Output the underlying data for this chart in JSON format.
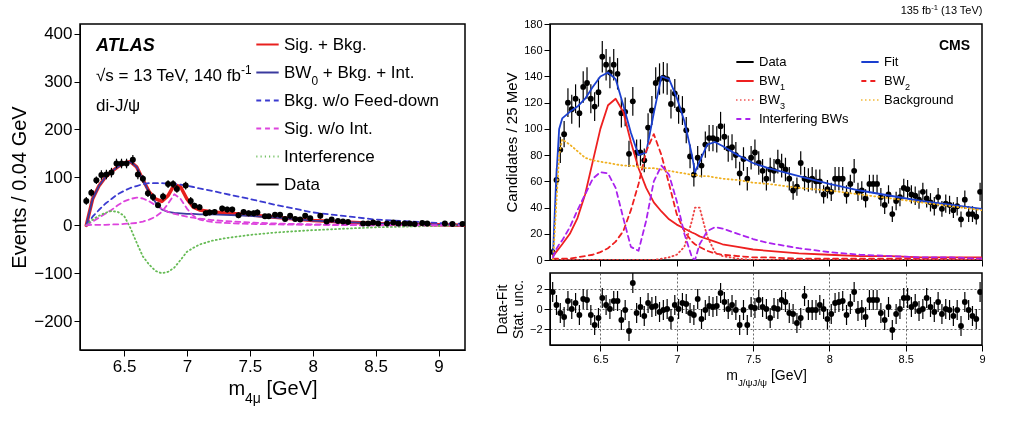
{
  "chart_data": [
    {
      "type": "line",
      "xlabel": "m$_{4μ}$ [GeV]",
      "ylabel": "Events / 0.04 GeV",
      "xlim": [
        6.15,
        9.21
      ],
      "xticks": [
        6.5,
        7,
        7.5,
        8,
        8.5,
        9
      ],
      "ylim": [
        -260,
        420
      ],
      "yticks": [
        -200,
        -100,
        0,
        100,
        200,
        300,
        400
      ],
      "legend": "top right",
      "annotations": [
        "ATLAS",
        "√s = 13 TeV, 140 fb$^{-1}$",
        "di-J/ψ"
      ],
      "series": [
        {
          "name": "Sig. + Bkg.",
          "color": "#e8201e",
          "line_style": "solid",
          "x": [
            6.2,
            6.25,
            6.3,
            6.35,
            6.4,
            6.45,
            6.5,
            6.55,
            6.6,
            6.65,
            6.7,
            6.75,
            6.8,
            6.85,
            6.9,
            6.95,
            7.0,
            7.05,
            7.1,
            7.2,
            7.3,
            7.5,
            7.7,
            8.0,
            8.5,
            9.0,
            9.2
          ],
          "values": [
            0,
            55,
            82,
            100,
            112,
            122,
            130,
            133,
            122,
            95,
            70,
            55,
            50,
            62,
            85,
            80,
            55,
            38,
            32,
            28,
            26,
            22,
            17,
            10,
            4,
            1,
            0
          ]
        },
        {
          "name": "BW$_{0}$ + Bkg. + Int.",
          "color": "#3a3a9e",
          "line_style": "solid",
          "x": [
            6.2,
            6.25,
            6.3,
            6.35,
            6.4,
            6.45,
            6.5,
            6.55,
            6.6,
            6.65,
            6.7,
            6.75,
            6.8,
            6.85,
            6.9,
            6.95,
            7.0,
            7.05,
            7.1,
            7.2,
            7.3,
            7.5,
            7.7,
            8.0,
            8.5,
            9.0,
            9.2
          ],
          "values": [
            0,
            55,
            82,
            100,
            112,
            122,
            130,
            133,
            122,
            95,
            68,
            48,
            33,
            28,
            26,
            25,
            24,
            24,
            23,
            23,
            22,
            20,
            16,
            10,
            4,
            1,
            0
          ]
        },
        {
          "name": "Bkg. w/o Feed-down",
          "color": "#3a3ad0",
          "line_style": "dashed",
          "x": [
            6.2,
            6.25,
            6.3,
            6.35,
            6.4,
            6.45,
            6.5,
            6.55,
            6.6,
            6.65,
            6.7,
            6.75,
            6.8,
            6.85,
            6.9,
            6.95,
            7.0,
            7.05,
            7.1,
            7.2,
            7.3,
            7.5,
            7.7,
            8.0,
            8.5,
            9.0,
            9.2
          ],
          "values": [
            0,
            18,
            32,
            45,
            55,
            65,
            72,
            78,
            82,
            86,
            88,
            88,
            88,
            87,
            86,
            85,
            83,
            80,
            77,
            72,
            66,
            55,
            43,
            27,
            12,
            5,
            3
          ]
        },
        {
          "name": "Sig. w/o Int.",
          "color": "#dd44dd",
          "line_style": "dashed",
          "x": [
            6.2,
            6.25,
            6.3,
            6.35,
            6.4,
            6.45,
            6.5,
            6.55,
            6.6,
            6.65,
            6.7,
            6.75,
            6.8,
            6.85,
            6.9,
            6.95,
            7.0,
            7.05,
            7.1,
            7.2,
            7.3,
            7.5,
            7.7,
            8.0,
            8.5,
            9.0,
            9.2
          ],
          "values": [
            0,
            8,
            16,
            24,
            32,
            42,
            50,
            55,
            58,
            56,
            50,
            42,
            35,
            28,
            24,
            21,
            18,
            16,
            14,
            11,
            9,
            6,
            4,
            2,
            1,
            0,
            0
          ]
        },
        {
          "name": "Interference",
          "color": "#66bb55",
          "line_style": "dotted",
          "x": [
            6.2,
            6.25,
            6.3,
            6.35,
            6.4,
            6.45,
            6.5,
            6.55,
            6.6,
            6.65,
            6.7,
            6.75,
            6.8,
            6.85,
            6.9,
            6.95,
            7.0,
            7.05,
            7.1,
            7.2,
            7.3,
            7.5,
            7.7,
            8.0,
            8.5,
            9.0,
            9.2
          ],
          "values": [
            0,
            12,
            20,
            26,
            30,
            28,
            20,
            -5,
            -36,
            -65,
            -82,
            -95,
            -100,
            -97,
            -88,
            -72,
            -55,
            -47,
            -40,
            -32,
            -27,
            -20,
            -15,
            -10,
            -4,
            -1,
            0
          ]
        },
        {
          "color": "#dd44dd",
          "line_style": "dashed",
          "x": [
            6.2,
            6.25,
            6.3,
            6.35,
            6.4,
            6.45,
            6.5,
            6.55,
            6.6,
            6.65,
            6.7,
            6.75,
            6.8,
            6.85,
            6.9,
            6.95,
            7.0,
            7.05,
            7.1,
            7.2,
            7.3,
            7.5,
            7.7,
            8.0,
            8.5,
            9.0,
            9.2
          ],
          "values": [
            0,
            1,
            1,
            1,
            2,
            2,
            3,
            4,
            5,
            8,
            12,
            18,
            28,
            45,
            65,
            55,
            35,
            20,
            12,
            7,
            5,
            3,
            2,
            1,
            0,
            0,
            0
          ]
        },
        {
          "name": "Data",
          "type": "scatter",
          "marker": "circle",
          "color": "#000000",
          "x": [
            6.2,
            6.24,
            6.28,
            6.32,
            6.36,
            6.4,
            6.44,
            6.48,
            6.52,
            6.57,
            6.61,
            6.65,
            6.69,
            6.73,
            6.77,
            6.81,
            6.85,
            6.89,
            6.92,
            6.99,
            7.03,
            7.06,
            7.1,
            7.15,
            7.18,
            7.22,
            7.28,
            7.32,
            7.36,
            7.41,
            7.45,
            7.49,
            7.53,
            7.56,
            7.62,
            7.65,
            7.7,
            7.74,
            7.78,
            7.82,
            7.86,
            7.9,
            7.94,
            7.98,
            8.06,
            8.11,
            8.15,
            8.2,
            8.24,
            8.28,
            8.4,
            8.44,
            8.48,
            8.52,
            8.59,
            8.64,
            8.68,
            8.73,
            8.77,
            8.81,
            8.87,
            8.91,
            9.05,
            9.11,
            9.19
          ],
          "values": [
            51,
            68,
            94,
            105,
            106,
            110,
            129,
            129,
            129,
            137,
            106,
            97,
            67,
            59,
            42,
            60,
            86,
            86,
            76,
            83,
            51,
            41,
            38,
            25,
            27,
            28,
            35,
            33,
            33,
            21,
            28,
            25,
            25,
            27,
            19,
            19,
            22,
            22,
            13,
            20,
            13,
            12,
            20,
            15,
            20,
            8,
            12,
            9,
            8,
            7,
            4,
            4,
            6,
            4,
            4,
            6,
            4,
            4,
            4,
            3,
            5,
            4,
            4,
            3,
            3
          ],
          "errors": [
            8,
            8,
            8,
            10,
            10,
            10,
            10,
            10,
            10,
            10,
            10,
            8,
            8,
            8,
            6,
            8,
            8,
            8,
            8,
            8,
            8,
            6,
            6,
            6,
            6,
            6,
            6,
            6,
            6,
            6,
            6,
            6,
            6,
            6,
            4,
            4,
            6,
            6,
            4,
            6,
            4,
            4,
            6,
            4,
            6,
            4,
            4,
            4,
            4,
            4,
            4,
            4,
            4,
            4,
            4,
            4,
            4,
            4,
            4,
            4,
            4,
            4,
            4,
            4,
            4
          ]
        }
      ]
    },
    {
      "type": "line",
      "title": "135 fb$^{-1}$ (13 TeV)",
      "ylabel": "Candidates / 25 MeV",
      "xlim": [
        6.17,
        9.0
      ],
      "xticks": [
        6.5,
        7,
        7.5,
        8,
        8.5,
        9
      ],
      "ylim": [
        0,
        180
      ],
      "yticks": [
        0,
        20,
        40,
        60,
        80,
        100,
        120,
        140,
        160,
        180
      ],
      "tick_labels": "y",
      "legend": "top right",
      "annotations": [
        "CMS"
      ],
      "x": [
        6.1875,
        6.2125,
        6.2375,
        6.2625,
        6.2875,
        6.3125,
        6.3375,
        6.3625,
        6.3875,
        6.4125,
        6.4375,
        6.4625,
        6.4875,
        6.5125,
        6.5375,
        6.5625,
        6.5875,
        6.6125,
        6.6375,
        6.6625,
        6.6875,
        6.7125,
        6.7375,
        6.7625,
        6.7875,
        6.8125,
        6.8375,
        6.8625,
        6.8875,
        6.9125,
        6.9375,
        6.9625,
        6.9875,
        7.0125,
        7.0375,
        7.0625,
        7.0875,
        7.1125,
        7.1375,
        7.1625,
        7.1875,
        7.2125,
        7.2375,
        7.2625,
        7.2875,
        7.3125,
        7.3375,
        7.3625,
        7.3875,
        7.4125,
        7.4375,
        7.4625,
        7.4875,
        7.5125,
        7.5375,
        7.5625,
        7.5875,
        7.6125,
        7.6375,
        7.6625,
        7.6875,
        7.7125,
        7.7375,
        7.7625,
        7.7875,
        7.8125,
        7.8375,
        7.8625,
        7.8875,
        7.9125,
        7.9375,
        7.9625,
        7.9875,
        8.0125,
        8.0375,
        8.0625,
        8.0875,
        8.1125,
        8.1375,
        8.1625,
        8.1875,
        8.2125,
        8.2375,
        8.2625,
        8.2875,
        8.3125,
        8.3375,
        8.3625,
        8.3875,
        8.4125,
        8.4375,
        8.4625,
        8.4875,
        8.5125,
        8.5375,
        8.5625,
        8.5875,
        8.6125,
        8.6375,
        8.6625,
        8.6875,
        8.7125,
        8.7375,
        8.7625,
        8.7875,
        8.8125,
        8.8375,
        8.8625,
        8.8875,
        8.9125,
        8.9375,
        8.9625,
        8.9875
      ],
      "series": [
        {
          "name": "Data",
          "type": "scatter",
          "marker": "circle",
          "color": "#000000",
          "values": [
            6,
            61,
            84,
            96,
            120,
            115,
            123,
            112,
            132,
            135,
            123,
            117,
            128,
            155,
            149,
            143,
            149,
            142,
            112,
            113,
            81,
            121,
            82,
            82,
            76,
            101,
            114,
            135,
            138,
            139,
            138,
            119,
            127,
            115,
            114,
            99,
            79,
            65,
            78,
            72,
            88,
            93,
            93,
            92,
            102,
            94,
            85,
            86,
            80,
            66,
            77,
            62,
            78,
            82,
            74,
            68,
            62,
            69,
            68,
            75,
            72,
            69,
            62,
            53,
            56,
            74,
            62,
            61,
            62,
            60,
            60,
            50,
            54,
            52,
            62,
            62,
            62,
            50,
            58,
            68,
            52,
            53,
            47,
            58,
            58,
            58,
            48,
            42,
            50,
            35,
            45,
            48,
            55,
            54,
            50,
            49,
            46,
            52,
            47,
            44,
            41,
            48,
            39,
            43,
            42,
            38,
            41,
            31,
            46,
            35,
            35,
            33,
            52
          ],
          "errors": [
            3,
            9,
            10,
            10,
            11,
            11,
            11,
            11,
            12,
            12,
            11,
            11,
            11,
            12,
            12,
            12,
            12,
            12,
            11,
            11,
            10,
            11,
            10,
            10,
            9,
            11,
            11,
            12,
            12,
            12,
            12,
            11,
            11,
            11,
            11,
            10,
            9,
            9,
            9,
            9,
            10,
            10,
            10,
            10,
            11,
            10,
            10,
            10,
            10,
            9,
            9,
            9,
            9,
            10,
            9,
            9,
            9,
            9,
            9,
            9,
            9,
            9,
            9,
            7,
            7,
            9,
            9,
            9,
            9,
            9,
            9,
            7,
            7,
            7,
            9,
            9,
            9,
            7,
            7,
            9,
            7,
            7,
            7,
            7,
            7,
            7,
            7,
            7,
            7,
            6,
            7,
            7,
            7,
            7,
            7,
            7,
            7,
            7,
            7,
            7,
            7,
            7,
            6,
            7,
            7,
            6,
            7,
            6,
            7,
            6,
            6,
            6,
            7
          ]
        },
        {
          "name": "Fit",
          "color": "#1a3fcf",
          "line_style": "solid",
          "x": [
            6.19,
            6.21,
            6.23,
            6.25,
            6.3,
            6.35,
            6.4,
            6.45,
            6.5,
            6.55,
            6.6,
            6.65,
            6.7,
            6.75,
            6.8,
            6.85,
            6.9,
            6.95,
            7.0,
            7.05,
            7.1,
            7.12,
            7.15,
            7.2,
            7.25,
            7.3,
            7.4,
            7.5,
            7.6,
            7.8,
            8.0,
            8.2,
            8.4,
            8.6,
            8.8,
            9.0
          ],
          "values": [
            5,
            60,
            100,
            108,
            113,
            117,
            123,
            132,
            140,
            143,
            138,
            118,
            97,
            80,
            82,
            112,
            140,
            138,
            124,
            106,
            80,
            67,
            75,
            88,
            90,
            87,
            80,
            74,
            70,
            64,
            58,
            53,
            49,
            45,
            42,
            39
          ]
        },
        {
          "name": "BW$_{1}$",
          "color": "#ee2020",
          "line_style": "solid",
          "x": [
            6.19,
            6.21,
            6.23,
            6.25,
            6.3,
            6.35,
            6.4,
            6.45,
            6.5,
            6.55,
            6.6,
            6.65,
            6.7,
            6.75,
            6.8,
            6.85,
            6.9,
            6.95,
            7.0,
            7.05,
            7.1,
            7.12,
            7.15,
            7.2,
            7.25,
            7.3,
            7.4,
            7.5,
            7.6,
            7.8,
            8.0,
            8.2,
            8.4,
            8.6,
            8.8,
            9.0
          ],
          "values": [
            3,
            6,
            9,
            12,
            20,
            32,
            50,
            75,
            100,
            118,
            123,
            113,
            90,
            70,
            55,
            44,
            37,
            31,
            27,
            24,
            21,
            20,
            18,
            16,
            14,
            12,
            10,
            8,
            7,
            5,
            4,
            3,
            3,
            2,
            2,
            2
          ]
        },
        {
          "name": "BW$_{2}$",
          "color": "#ee2020",
          "line_style": "dashed",
          "x": [
            6.19,
            6.21,
            6.23,
            6.25,
            6.3,
            6.35,
            6.4,
            6.45,
            6.5,
            6.55,
            6.6,
            6.65,
            6.7,
            6.75,
            6.8,
            6.85,
            6.9,
            6.95,
            7.0,
            7.05,
            7.1,
            7.12,
            7.15,
            7.2,
            7.25,
            7.3,
            7.4,
            7.5,
            7.6,
            7.8,
            8.0,
            8.2,
            8.4,
            8.6,
            8.8,
            9.0
          ],
          "values": [
            1,
            1,
            1,
            1,
            1,
            2,
            3,
            4,
            6,
            9,
            14,
            22,
            38,
            58,
            83,
            96,
            80,
            58,
            35,
            22,
            14,
            12,
            10,
            7,
            5,
            4,
            3,
            2,
            2,
            1,
            1,
            1,
            1,
            1,
            1,
            1
          ]
        },
        {
          "name": "BW$_{3}$",
          "color": "#ee4040",
          "line_style": "dotted",
          "x": [
            6.19,
            6.21,
            6.23,
            6.25,
            6.3,
            6.35,
            6.4,
            6.45,
            6.5,
            6.55,
            6.6,
            6.65,
            6.7,
            6.75,
            6.8,
            6.85,
            6.9,
            6.95,
            7.0,
            7.05,
            7.1,
            7.12,
            7.15,
            7.2,
            7.25,
            7.3,
            7.4,
            7.5,
            7.6,
            7.8,
            8.0,
            8.2,
            8.4,
            8.6,
            8.8,
            9.0
          ],
          "values": [
            0,
            0,
            0,
            0,
            0,
            0,
            0,
            0,
            0,
            0,
            0,
            0,
            0,
            0,
            0,
            0,
            1,
            2,
            4,
            10,
            30,
            40,
            40,
            18,
            6,
            3,
            1,
            0,
            0,
            0,
            0,
            0,
            0,
            0,
            0,
            0
          ]
        },
        {
          "name": "Background",
          "color": "#f0b020",
          "line_style": "dotted",
          "x": [
            6.19,
            6.21,
            6.23,
            6.25,
            6.3,
            6.35,
            6.4,
            6.45,
            6.5,
            6.55,
            6.6,
            6.65,
            6.7,
            6.75,
            6.8,
            6.85,
            6.9,
            6.95,
            7.0,
            7.05,
            7.1,
            7.12,
            7.15,
            7.2,
            7.25,
            7.3,
            7.4,
            7.5,
            7.6,
            7.8,
            8.0,
            8.2,
            8.4,
            8.6,
            8.8,
            9.0
          ],
          "values": [
            0,
            40,
            80,
            92,
            88,
            83,
            78,
            76,
            75,
            74,
            73,
            72,
            72,
            71,
            70,
            70,
            69,
            68,
            67,
            66,
            65,
            65,
            64,
            64,
            63,
            62,
            61,
            59,
            58,
            55,
            53,
            50,
            47,
            44,
            41,
            38
          ]
        },
        {
          "name": "Interfering BWs",
          "color": "#aa22ee",
          "line_style": "dashed",
          "x": [
            6.19,
            6.21,
            6.23,
            6.25,
            6.3,
            6.35,
            6.4,
            6.45,
            6.5,
            6.55,
            6.6,
            6.65,
            6.7,
            6.75,
            6.8,
            6.85,
            6.9,
            6.95,
            7.0,
            7.05,
            7.1,
            7.12,
            7.15,
            7.2,
            7.25,
            7.3,
            7.4,
            7.5,
            7.6,
            7.8,
            8.0,
            8.2,
            8.4,
            8.6,
            8.8,
            9.0
          ],
          "values": [
            2,
            8,
            12,
            15,
            25,
            38,
            50,
            62,
            67,
            66,
            55,
            32,
            10,
            7,
            30,
            60,
            72,
            65,
            45,
            20,
            2,
            0,
            12,
            22,
            25,
            24,
            20,
            16,
            13,
            9,
            6,
            4,
            3,
            2,
            2,
            1
          ]
        }
      ]
    },
    {
      "type": "scatter",
      "xlabel": "m$_{J/ψJ/ψ}$ [GeV]",
      "ylabel": "Data-Fit\nStat. unc.",
      "xlim": [
        6.17,
        9.0
      ],
      "xticks": [
        6.5,
        7,
        7.5,
        8,
        8.5,
        9
      ],
      "ylim": [
        -3.6,
        3.6
      ],
      "yticks": [
        -2,
        0,
        2
      ],
      "grid": true,
      "marker": "circle",
      "x": [
        6.1875,
        6.2125,
        6.2375,
        6.2625,
        6.2875,
        6.3125,
        6.3375,
        6.3625,
        6.3875,
        6.4125,
        6.4375,
        6.4625,
        6.4875,
        6.5125,
        6.5375,
        6.5625,
        6.5875,
        6.6125,
        6.6375,
        6.6625,
        6.6875,
        6.7125,
        6.7375,
        6.7625,
        6.7875,
        6.8125,
        6.8375,
        6.8625,
        6.8875,
        6.9125,
        6.9375,
        6.9625,
        6.9875,
        7.0125,
        7.0375,
        7.0625,
        7.0875,
        7.1125,
        7.1375,
        7.1625,
        7.1875,
        7.2125,
        7.2375,
        7.2625,
        7.2875,
        7.3125,
        7.3375,
        7.3625,
        7.3875,
        7.4125,
        7.4375,
        7.4625,
        7.4875,
        7.5125,
        7.5375,
        7.5625,
        7.5875,
        7.6125,
        7.6375,
        7.6625,
        7.6875,
        7.7125,
        7.7375,
        7.7625,
        7.7875,
        7.8125,
        7.8375,
        7.8625,
        7.8875,
        7.9125,
        7.9375,
        7.9625,
        7.9875,
        8.0125,
        8.0375,
        8.0625,
        8.0875,
        8.1125,
        8.1375,
        8.1625,
        8.1875,
        8.2125,
        8.2375,
        8.2625,
        8.2875,
        8.3125,
        8.3375,
        8.3625,
        8.3875,
        8.4125,
        8.4375,
        8.4625,
        8.4875,
        8.5125,
        8.5375,
        8.5625,
        8.5875,
        8.6125,
        8.6375,
        8.6625,
        8.6875,
        8.7125,
        8.7375,
        8.7625,
        8.7875,
        8.8125,
        8.8375,
        8.8625,
        8.8875,
        8.9125,
        8.9375,
        8.9625,
        8.9875
      ],
      "series": [
        {
          "color": "#000000",
          "values": [
            1.7,
            0.4,
            -0.4,
            -0.8,
            0.8,
            0,
            0.6,
            -0.6,
            1,
            0.9,
            -0.6,
            -1.6,
            -0.9,
            1.1,
            0.4,
            0,
            0.8,
            0.8,
            -1.1,
            -0.1,
            -2.2,
            2.6,
            -0.4,
            0.2,
            -0.7,
            0.6,
            0.2,
            0.3,
            -0.3,
            -0.1,
            0,
            -1,
            0.4,
            0,
            0.6,
            0.5,
            -0.4,
            -0.6,
            1,
            -1,
            -0.1,
            0.3,
            0.2,
            0.3,
            1.6,
            0.7,
            0,
            0.4,
            -0.1,
            -1.6,
            -0.1,
            -1.6,
            0.2,
            0.1,
            0.9,
            0.2,
            0,
            -0.9,
            0.1,
            0,
            0.9,
            0.7,
            -0.4,
            -0.5,
            -1.4,
            -0.9,
            1.3,
            -0.1,
            -0.1,
            -0.1,
            0.4,
            0,
            -1,
            -0.5,
            0.6,
            0.7,
            0.8,
            -0.6,
            0.5,
            1.7,
            -0.2,
            -0.1,
            -0.8,
            0.9,
            0.9,
            0.9,
            -0.4,
            -1.1,
            0.2,
            -2.1,
            -0.5,
            0,
            1.1,
            1.1,
            0.2,
            0.5,
            -0.2,
            0,
            1.1,
            0.2,
            -0.3,
            0.7,
            -0.5,
            0,
            -0.1,
            -0.7,
            -0.1,
            -1.7,
            0.7,
            -0.1,
            -0.7,
            -1,
            1.7
          ],
          "errors": [
            1,
            1,
            1,
            1,
            1,
            1,
            1,
            1,
            1,
            1,
            1,
            1,
            1,
            1,
            1,
            1,
            1,
            1,
            1,
            1,
            1,
            1,
            1,
            1,
            1,
            1,
            1,
            1,
            1,
            1,
            1,
            1,
            1,
            1,
            1,
            1,
            1,
            1,
            1,
            1,
            1,
            1,
            1,
            1,
            1,
            1,
            1,
            1,
            1,
            1,
            1,
            1,
            1,
            1,
            1,
            1,
            1,
            1,
            1,
            1,
            1,
            1,
            1,
            1,
            1,
            1,
            1,
            1,
            1,
            1,
            1,
            1,
            1,
            1,
            1,
            1,
            1,
            1,
            1,
            1,
            1,
            1,
            1,
            1,
            1,
            1,
            1,
            1,
            1,
            1,
            1,
            1,
            1,
            1,
            1,
            1,
            1,
            1,
            1,
            1,
            1,
            1,
            1,
            1,
            1,
            1,
            1,
            1,
            1,
            1,
            1,
            1,
            1
          ]
        }
      ]
    }
  ]
}
